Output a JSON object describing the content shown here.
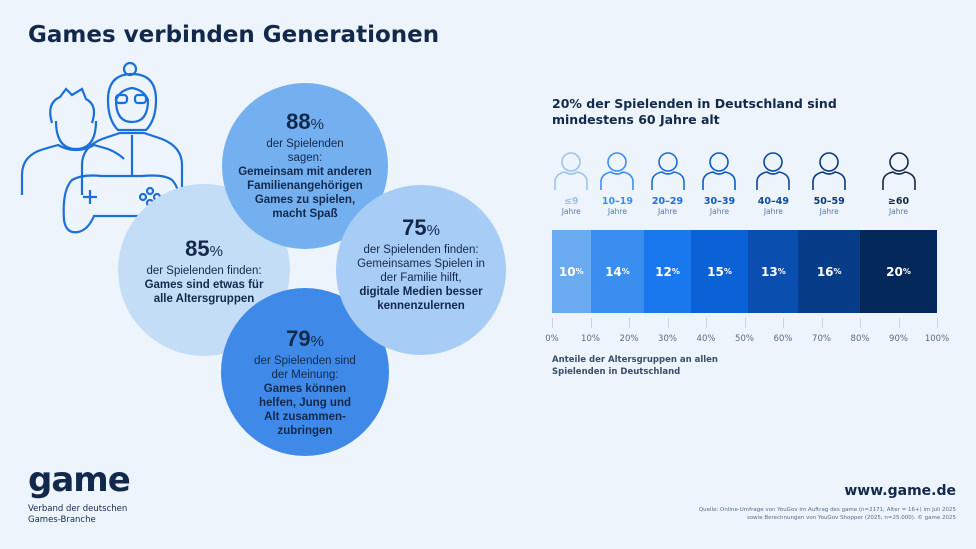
{
  "title": "Games verbinden Generationen",
  "circles": [
    {
      "pct": "85",
      "unit": "%",
      "normal": "der Spielenden finden:",
      "bold": "Games sind etwas für alle Altersgruppen",
      "color": "#c4ddf7"
    },
    {
      "pct": "88",
      "unit": "%",
      "normal": "der Spielenden sagen:",
      "bold": "Gemeinsam mit anderen Familienangehörigen Games zu spielen, macht Spaß",
      "color": "#74b0f0"
    },
    {
      "pct": "79",
      "unit": "%",
      "normal": "der Spielenden sind der Meinung:",
      "bold": "Games können helfen, Jung und Alt zusammen-zubringen",
      "color": "#3f8ae8"
    },
    {
      "pct": "75",
      "unit": "%",
      "normal": "der Spielenden finden: Gemeinsames Spielen in der Familie hilft,",
      "bold": "digitale Medien besser kennenzulernen",
      "color": "#a7ccf5"
    }
  ],
  "chart_data": {
    "type": "bar",
    "orientation": "horizontal-stacked",
    "title": "20% der Spielenden in Deutschland sind mindestens 60 Jahre alt",
    "categories": [
      "≤9",
      "10–19",
      "20–29",
      "30–39",
      "40–49",
      "50–59",
      "≥60"
    ],
    "category_unit": "Jahre",
    "values": [
      10,
      14,
      12,
      15,
      13,
      16,
      20
    ],
    "value_labels": [
      "10",
      "14",
      "12",
      "15",
      "13",
      "16",
      "20"
    ],
    "value_unit": "%",
    "colors": [
      "#6aaaf0",
      "#3a8ef0",
      "#1a78ee",
      "#0a62d6",
      "#0a4fb0",
      "#073d88",
      "#05285a"
    ],
    "label_colors": [
      "#9cc3ee",
      "#3a8ef0",
      "#1a6fd8",
      "#0a5bc4",
      "#0a4a9f",
      "#073a80",
      "#13294b"
    ],
    "xlim": [
      0,
      100
    ],
    "xticks": [
      "0%",
      "10%",
      "20%",
      "30%",
      "40%",
      "50%",
      "60%",
      "70%",
      "80%",
      "90%",
      "100%"
    ],
    "xlabel": "Anteile der Altersgruppen an allen Spielenden in Deutschland"
  },
  "footer": {
    "logo": "game",
    "logo_sub": [
      "Verband der deutschen",
      "Games-Branche"
    ],
    "url": "www.game.de",
    "source": [
      "Quelle: Online-Umfrage von YouGov im Auftrag des game (n=2171; Alter = 16+) im Juli 2025",
      "sowie Berechnungen von YouGov Shopper (2025, n=25.000). © game 2025"
    ]
  }
}
